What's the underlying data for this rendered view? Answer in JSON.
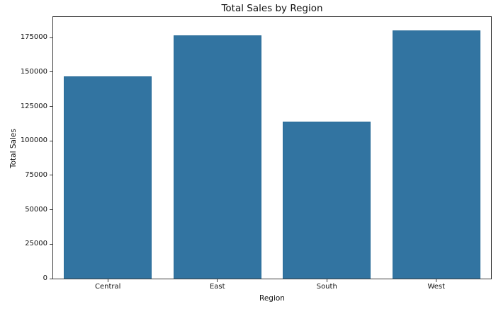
{
  "chart_data": {
    "type": "bar",
    "title": "Total Sales by Region",
    "xlabel": "Region",
    "ylabel": "Total Sales",
    "categories": [
      "Central",
      "East",
      "South",
      "West"
    ],
    "values": [
      147100,
      176900,
      113800,
      180300
    ],
    "ylim": [
      0,
      190000
    ],
    "yticks": [
      0,
      25000,
      50000,
      75000,
      100000,
      125000,
      150000,
      175000
    ],
    "ytick_labels": [
      "0",
      "25000",
      "50000",
      "75000",
      "100000",
      "125000",
      "150000",
      "175000"
    ],
    "bar_color": "#3274a1",
    "bar_edge_color": "#2a6d99",
    "axis_color": "#3a3a3a",
    "text_color": "#111111",
    "background": "#ffffff",
    "grid": false,
    "legend": false
  }
}
